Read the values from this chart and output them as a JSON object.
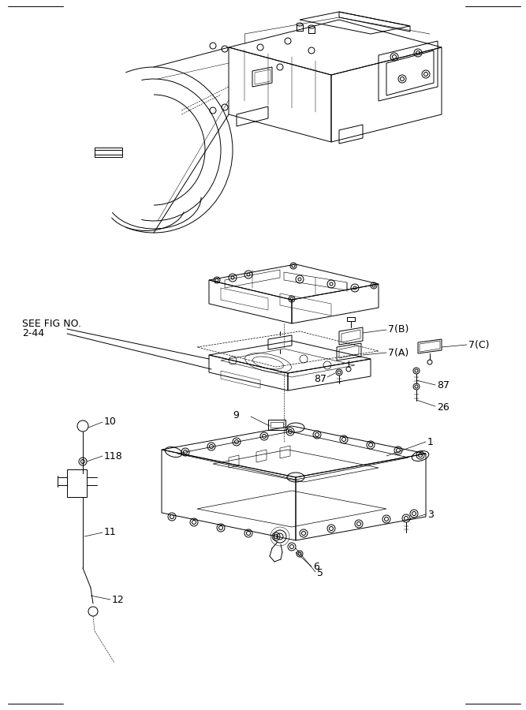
{
  "background_color": "#ffffff",
  "line_color": "#000000",
  "fig_width": 6.67,
  "fig_height": 9.0,
  "labels": {
    "see_fig_line1": "SEE FIG NO.",
    "see_fig_line2": "2-44",
    "part_1": "1",
    "part_3": "3",
    "part_5": "5",
    "part_6": "6",
    "part_7A": "7(A)",
    "part_7B": "7(B)",
    "part_7C": "7(C)",
    "part_9": "9",
    "part_10": "10",
    "part_11": "11",
    "part_12": "12",
    "part_26": "26",
    "part_87a": "87",
    "part_87b": "87",
    "part_118": "118"
  },
  "border_lines": [
    [
      10,
      892,
      80,
      892
    ],
    [
      590,
      892,
      660,
      892
    ],
    [
      10,
      8,
      80,
      8
    ],
    [
      590,
      8,
      660,
      8
    ]
  ]
}
